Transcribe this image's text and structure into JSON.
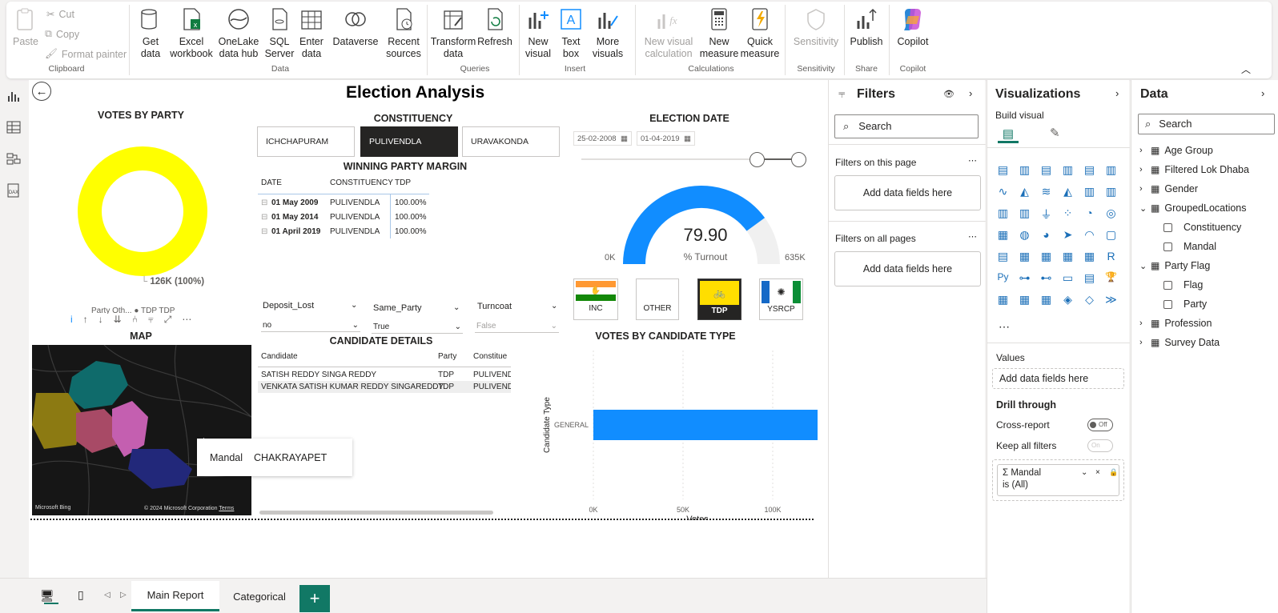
{
  "ribbon": {
    "clipboard": {
      "paste": "Paste",
      "cut": "Cut",
      "copy": "Copy",
      "format_painter": "Format painter",
      "group": "Clipboard"
    },
    "data": {
      "get_data": "Get data",
      "excel": "Excel workbook",
      "onelake": "OneLake data hub",
      "sql": "SQL Server",
      "enter": "Enter data",
      "dataverse": "Dataverse",
      "recent": "Recent sources",
      "group": "Data"
    },
    "queries": {
      "transform": "Transform data",
      "refresh": "Refresh",
      "group": "Queries"
    },
    "insert": {
      "new_visual": "New visual",
      "text_box": "Text box",
      "more_visuals": "More visuals",
      "group": "Insert"
    },
    "calculations": {
      "new_visual_calc": "New visual calculation",
      "new_measure": "New measure",
      "quick_measure": "Quick measure",
      "group": "Calculations"
    },
    "sensitivity": {
      "label": "Sensitivity",
      "group": "Sensitivity"
    },
    "share": {
      "publish": "Publish",
      "group": "Share"
    },
    "copilot": {
      "label": "Copilot",
      "group": "Copilot"
    }
  },
  "report": {
    "title": "Election Analysis",
    "donut": {
      "title": "VOTES BY PARTY",
      "label": "126K (100%)",
      "legend": "Party Oth... ● TDP TDP",
      "color": "#ffff00"
    },
    "constituency": {
      "title": "CONSTITUENCY",
      "tiles": [
        "ICHCHAPURAM",
        "PULIVENDLA",
        "URAVAKONDA"
      ],
      "selected": "PULIVENDLA"
    },
    "margin": {
      "title": "WINNING PARTY MARGIN",
      "headers": [
        "DATE",
        "CONSTITUENCY",
        "TDP"
      ],
      "rows": [
        {
          "date": "01 May 2009",
          "constituency": "PULIVENDLA",
          "value": "100.00%"
        },
        {
          "date": "01 May 2014",
          "constituency": "PULIVENDLA",
          "value": "100.00%"
        },
        {
          "date": "01 April 2019",
          "constituency": "PULIVENDLA",
          "value": "100.00%"
        }
      ]
    },
    "election_date": {
      "title": "ELECTION DATE",
      "start": "25-02-2008",
      "end": "01-04-2019"
    },
    "gauge": {
      "value_label": "79.90",
      "caption": "% Turnout",
      "min_label": "0K",
      "max_label": "635K",
      "fraction": 0.799,
      "color": "#118dff"
    },
    "slicers": [
      {
        "title": "Deposit_Lost",
        "value": "no"
      },
      {
        "title": "Same_Party",
        "value": "True"
      },
      {
        "title": "Turncoat",
        "value": "False"
      }
    ],
    "parties": [
      "INC",
      "OTHER",
      "TDP",
      "YSRCP"
    ],
    "map": {
      "title": "MAP",
      "tooltip_key": "Mandal",
      "tooltip_value": "CHAKRAYAPET",
      "attribution": "© 2024 Microsoft Corporation",
      "terms": "Terms",
      "brand": "Microsoft Bing"
    },
    "candidates": {
      "title": "CANDIDATE DETAILS",
      "headers": [
        "Candidate",
        "Party",
        "Constitue"
      ],
      "rows": [
        {
          "candidate": "SATISH REDDY SINGA REDDY",
          "party": "TDP",
          "constituency": "PULIVENDLA"
        },
        {
          "candidate": "VENKATA SATISH KUMAR REDDY SINGAREDDY",
          "party": "TDP",
          "constituency": "PULIVENDLA"
        }
      ]
    }
  },
  "chart_data": {
    "type": "bar",
    "title": "VOTES BY CANDIDATE TYPE",
    "categories": [
      "GENERAL"
    ],
    "values": [
      126000
    ],
    "xlabel": "Votes",
    "ylabel": "Candidate Type",
    "xlim": [
      0,
      125000
    ],
    "ticks": [
      "0K",
      "50K",
      "100K"
    ],
    "color": "#118dff"
  },
  "filters": {
    "title": "Filters",
    "search": "Search",
    "on_page": "Filters on this page",
    "on_all": "Filters on all pages",
    "add": "Add data fields here"
  },
  "visualizations": {
    "title": "Visualizations",
    "build": "Build visual",
    "values": "Values",
    "add": "Add data fields here",
    "drill": "Drill through",
    "cross": "Cross-report",
    "cross_state": "Off",
    "keep": "Keep all filters",
    "keep_state": "On",
    "field": "Mandal",
    "field_filter": "is (All)"
  },
  "data_pane": {
    "title": "Data",
    "search": "Search",
    "tables": [
      {
        "name": "Age Group"
      },
      {
        "name": "Filtered Lok Dhaba"
      },
      {
        "name": "Gender"
      },
      {
        "name": "GroupedLocations",
        "fields": [
          "Constituency",
          "Mandal"
        ]
      },
      {
        "name": "Party Flag",
        "fields": [
          "Flag",
          "Party"
        ]
      },
      {
        "name": "Profession"
      },
      {
        "name": "Survey Data"
      }
    ]
  },
  "tabs": {
    "main": "Main Report",
    "categorical": "Categorical"
  }
}
